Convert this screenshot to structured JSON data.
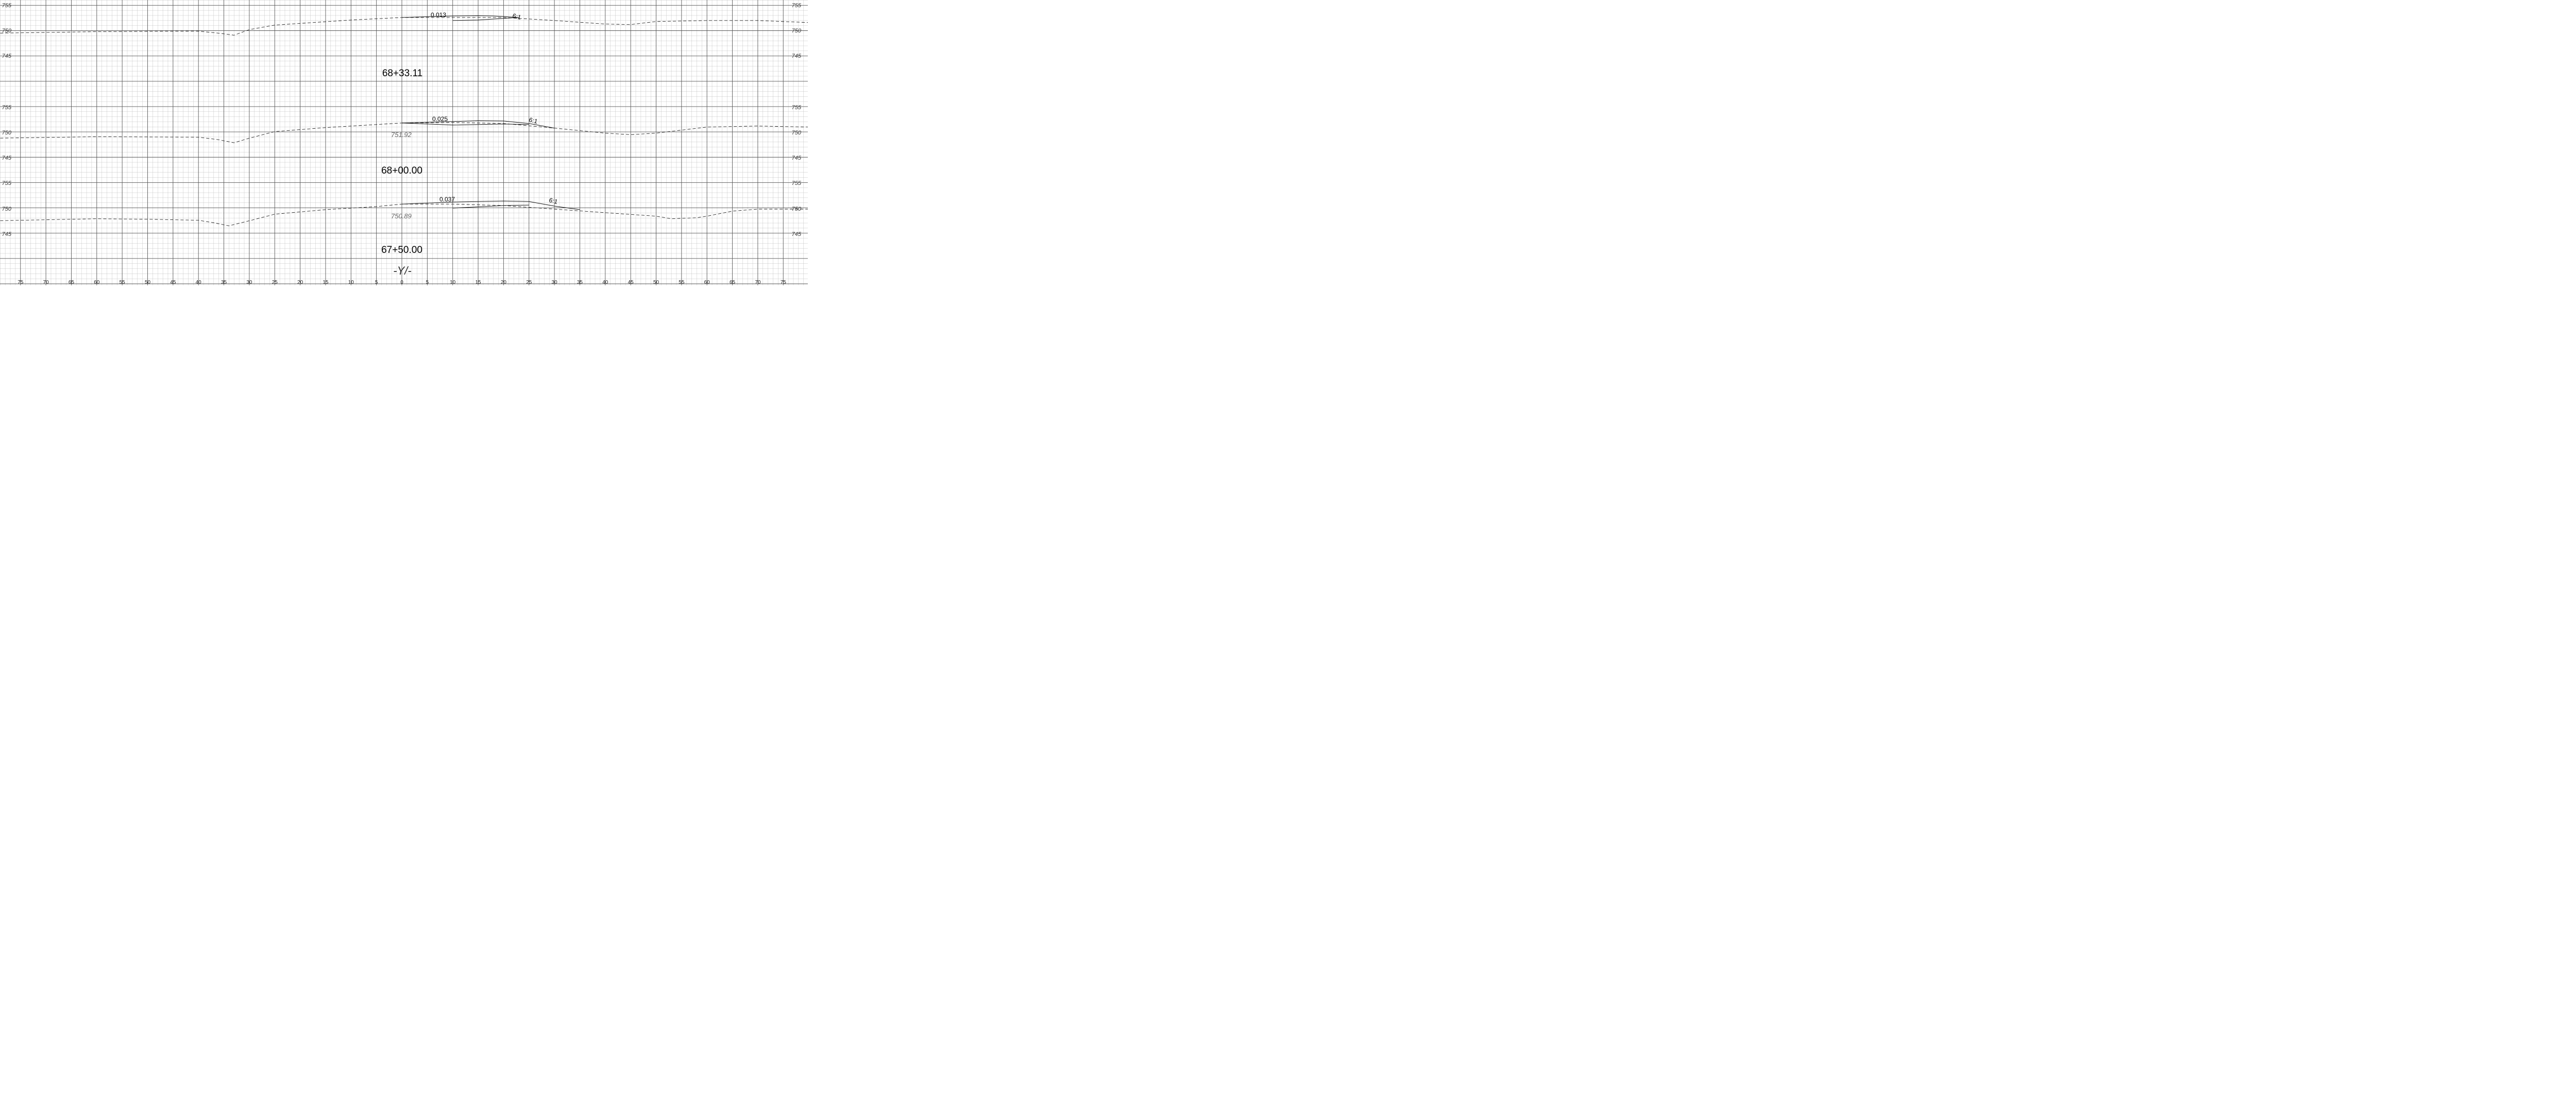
{
  "sheet": {
    "alignment_label": "-Y/-",
    "bottom_ticks": [
      "75",
      "70",
      "65",
      "60",
      "55",
      "50",
      "45",
      "40",
      "35",
      "30",
      "25",
      "20",
      "15",
      "10",
      "5",
      "0",
      "5",
      "10",
      "15",
      "20",
      "25",
      "30",
      "35",
      "40",
      "45",
      "50",
      "55",
      "60",
      "65",
      "70",
      "75"
    ],
    "offsets": [
      -75,
      -70,
      -65,
      -60,
      -55,
      -50,
      -45,
      -40,
      -35,
      -30,
      -25,
      -20,
      -15,
      -10,
      -5,
      0,
      5,
      10,
      15,
      20,
      25,
      30,
      35,
      40,
      45,
      50,
      55,
      60,
      65,
      70,
      75
    ]
  },
  "sections": [
    {
      "station": "68+33.11",
      "elev_labels": [
        "755",
        "750",
        "745"
      ],
      "elev_values": [
        755,
        750,
        745
      ],
      "grade_label": "0.013",
      "slope_label": "6:1",
      "centerline_elev_label": "",
      "existing_ground": [
        [
          -80,
          749.5
        ],
        [
          -60,
          749.8
        ],
        [
          -40,
          749.9
        ],
        [
          -36,
          749.5
        ],
        [
          -33,
          749.1
        ],
        [
          -30,
          750.2
        ],
        [
          -25,
          751.1
        ],
        [
          -10,
          752.1
        ],
        [
          0,
          752.6
        ],
        [
          20,
          752.6
        ],
        [
          30,
          752.0
        ],
        [
          40,
          751.3
        ],
        [
          45,
          751.2
        ],
        [
          50,
          751.8
        ],
        [
          60,
          752.0
        ],
        [
          70,
          752.0
        ],
        [
          80,
          751.6
        ]
      ],
      "proposed_top": [
        [
          0,
          752.6
        ],
        [
          10,
          752.9
        ],
        [
          15,
          752.95
        ],
        [
          18,
          752.9
        ],
        [
          23,
          752.6
        ]
      ],
      "proposed_bottom": [
        [
          10,
          752.0
        ],
        [
          15,
          752.1
        ],
        [
          23,
          752.6
        ]
      ]
    },
    {
      "station": "68+00.00",
      "elev_labels": [
        "755",
        "750",
        "745"
      ],
      "elev_values": [
        755,
        750,
        745
      ],
      "grade_label": "0.025",
      "slope_label": "6:1",
      "centerline_elev_label": "751.92",
      "existing_ground": [
        [
          -80,
          748.9
        ],
        [
          -60,
          749.2
        ],
        [
          -40,
          749.1
        ],
        [
          -36,
          748.6
        ],
        [
          -33,
          748.0
        ],
        [
          -30,
          748.9
        ],
        [
          -25,
          750.2
        ],
        [
          -15,
          751.0
        ],
        [
          -5,
          751.6
        ],
        [
          0,
          751.9
        ],
        [
          10,
          752.0
        ],
        [
          20,
          751.8
        ],
        [
          30,
          750.9
        ],
        [
          40,
          749.9
        ],
        [
          45,
          749.6
        ],
        [
          50,
          749.9
        ],
        [
          60,
          751.1
        ],
        [
          70,
          751.3
        ],
        [
          80,
          751.1
        ]
      ],
      "proposed_top": [
        [
          0,
          751.9
        ],
        [
          10,
          752.2
        ],
        [
          15,
          752.35
        ],
        [
          20,
          752.3
        ],
        [
          25,
          751.8
        ],
        [
          30,
          750.9
        ]
      ],
      "proposed_bottom": [
        [
          0,
          751.9
        ],
        [
          10,
          751.5
        ],
        [
          20,
          751.7
        ],
        [
          25,
          751.6
        ]
      ]
    },
    {
      "station": "67+50.00",
      "elev_labels": [
        "755",
        "750",
        "745"
      ],
      "elev_values": [
        755,
        750,
        745
      ],
      "grade_label": "0.037",
      "slope_label": "6:1",
      "centerline_elev_label": "750.89",
      "existing_ground": [
        [
          -80,
          747.6
        ],
        [
          -60,
          748.0
        ],
        [
          -50,
          747.9
        ],
        [
          -40,
          747.7
        ],
        [
          -37,
          747.2
        ],
        [
          -34,
          746.6
        ],
        [
          -30,
          747.6
        ],
        [
          -25,
          748.9
        ],
        [
          -15,
          749.8
        ],
        [
          -5,
          750.4
        ],
        [
          0,
          750.9
        ],
        [
          10,
          750.9
        ],
        [
          20,
          750.6
        ],
        [
          30,
          749.9
        ],
        [
          40,
          749.2
        ],
        [
          50,
          748.5
        ],
        [
          53,
          748.0
        ],
        [
          58,
          748.2
        ],
        [
          60,
          748.5
        ],
        [
          65,
          749.5
        ],
        [
          70,
          749.9
        ],
        [
          80,
          749.9
        ]
      ],
      "proposed_top": [
        [
          0,
          750.9
        ],
        [
          10,
          751.3
        ],
        [
          20,
          751.5
        ],
        [
          25,
          751.4
        ],
        [
          30,
          750.5
        ],
        [
          35,
          749.8
        ]
      ],
      "proposed_bottom": [
        [
          10,
          750.1
        ],
        [
          20,
          750.6
        ],
        [
          25,
          750.7
        ]
      ]
    }
  ]
}
